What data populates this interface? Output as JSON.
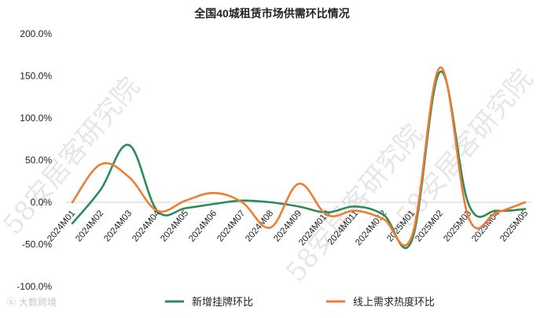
{
  "chart_data": {
    "type": "line",
    "title": "全国40城租赁市场供需环比情况",
    "xlabel": "",
    "ylabel": "",
    "categories": [
      "2024M01",
      "2024M02",
      "2024M03",
      "2024M04",
      "2024M05",
      "2024M06",
      "2024M07",
      "2024M08",
      "2024M09",
      "2024M010",
      "2024M011",
      "2024M012",
      "2025M01",
      "2025M02",
      "2025M03",
      "2025M04",
      "2025M05"
    ],
    "ylim": [
      -100,
      200
    ],
    "ytick_values": [
      -100,
      -50,
      0,
      50,
      100,
      150,
      200
    ],
    "ytick_labels": [
      "-100.0%",
      "-50.0%",
      "0.0%",
      "50.0%",
      "100.0%",
      "150.0%",
      "200.0%"
    ],
    "grid": false,
    "legend_position": "bottom",
    "series": [
      {
        "name": "新增挂牌环比",
        "color": "#2e8b57",
        "values": [
          -25,
          15,
          68,
          -10,
          -7,
          -2,
          2,
          0,
          -5,
          -12,
          -5,
          -15,
          -45,
          155,
          -2,
          -10,
          -8
        ]
      },
      {
        "name": "线上需求热度环比",
        "color": "#ed7d31",
        "values": [
          0,
          45,
          30,
          -10,
          2,
          11,
          0,
          -30,
          22,
          -15,
          -10,
          -20,
          -40,
          160,
          -18,
          -12,
          0
        ]
      }
    ]
  },
  "watermark": {
    "text": "58安居客研究院"
  },
  "logo": {
    "text": "大数跨境"
  }
}
